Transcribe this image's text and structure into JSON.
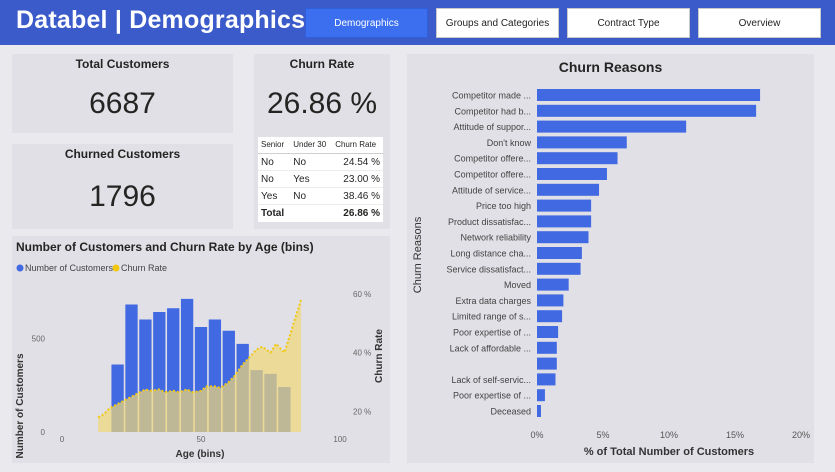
{
  "header": {
    "title": "Databel | Demographics",
    "nav": [
      "Demographics",
      "Groups and Categories",
      "Contract Type",
      "Overview"
    ],
    "active_tab": "Demographics"
  },
  "kpis": {
    "total_customers": {
      "label": "Total Customers",
      "value": "6687"
    },
    "churned_customers": {
      "label": "Churned Customers",
      "value": "1796"
    },
    "churn_rate": {
      "label": "Churn Rate",
      "value": "26.86 %"
    }
  },
  "senior_table": {
    "columns": [
      "Senior",
      "Under 30",
      "Churn Rate"
    ],
    "rows": [
      [
        "No",
        "No",
        "24.54 %"
      ],
      [
        "No",
        "Yes",
        "23.00 %"
      ],
      [
        "Yes",
        "No",
        "38.46 %"
      ]
    ],
    "total": [
      "Total",
      "",
      "26.86 %"
    ]
  },
  "colors": {
    "accent": "#3c6ff0",
    "bar": "#4169e1",
    "line": "#f2c811",
    "area": "#efd77a"
  },
  "chart_data": [
    {
      "type": "bar",
      "title": "Number of Customers and Churn Rate by Age (bins)",
      "legend": [
        "Number of Customers",
        "Churn Rate"
      ],
      "xlabel": "Age (bins)",
      "ylabel": "Number of Customers",
      "y2label": "Churn Rate",
      "x_ticks": [
        "0",
        "50",
        "100"
      ],
      "y_ticks": [
        "0",
        "500"
      ],
      "y2_ticks": [
        "20 %",
        "40 %",
        "60 %"
      ],
      "xlim": [
        0,
        100
      ],
      "ylim": [
        0,
        800
      ],
      "y2lim": [
        13,
        64
      ],
      "bins": [
        20,
        25,
        30,
        35,
        40,
        45,
        50,
        55,
        60,
        65,
        70,
        75,
        80
      ],
      "values": [
        360,
        680,
        600,
        640,
        660,
        710,
        560,
        600,
        540,
        470,
        330,
        310,
        240
      ],
      "churn_x": [
        13,
        15,
        17,
        19,
        21,
        23,
        25,
        27,
        30,
        32,
        35,
        37,
        40,
        42,
        45,
        47,
        50,
        52,
        55,
        57,
        60,
        62,
        65,
        67,
        70,
        72,
        75,
        77,
        80,
        82,
        84,
        86
      ],
      "churn_rate": [
        18,
        19,
        21,
        22,
        23,
        24,
        25,
        26,
        27.5,
        27,
        27.5,
        26.5,
        27,
        26.5,
        27.5,
        26.5,
        27,
        28.5,
        28.5,
        28,
        30,
        32,
        36,
        38,
        41,
        42,
        40,
        43,
        40,
        46,
        52,
        58
      ]
    },
    {
      "type": "bar",
      "orientation": "horizontal",
      "title": "Churn Reasons",
      "xlabel": "% of Total Number of Customers",
      "ylabel": "Churn Reasons",
      "x_ticks": [
        "0%",
        "5%",
        "10%",
        "15%",
        "20%"
      ],
      "xlim": [
        0,
        20
      ],
      "categories": [
        "Competitor made ...",
        "Competitor had b...",
        "Attitude of suppor...",
        "Don't know",
        "Competitor offere...",
        "Competitor offere...",
        "Attitude of service...",
        "Price too high",
        "Product dissatisfac...",
        "Network reliability",
        "Long distance cha...",
        "Service dissatisfact...",
        "Moved",
        "Extra data charges",
        "Limited range of s...",
        "Poor expertise of ...",
        "Lack of affordable ...",
        "",
        "Lack of self-servic...",
        "Poor expertise of ...",
        "Deceased"
      ],
      "values": [
        16.9,
        16.6,
        11.3,
        6.8,
        6.1,
        5.3,
        4.7,
        4.1,
        4.1,
        3.9,
        3.4,
        3.3,
        2.4,
        2.0,
        1.9,
        1.6,
        1.5,
        1.5,
        1.4,
        0.6,
        0.3
      ]
    }
  ]
}
